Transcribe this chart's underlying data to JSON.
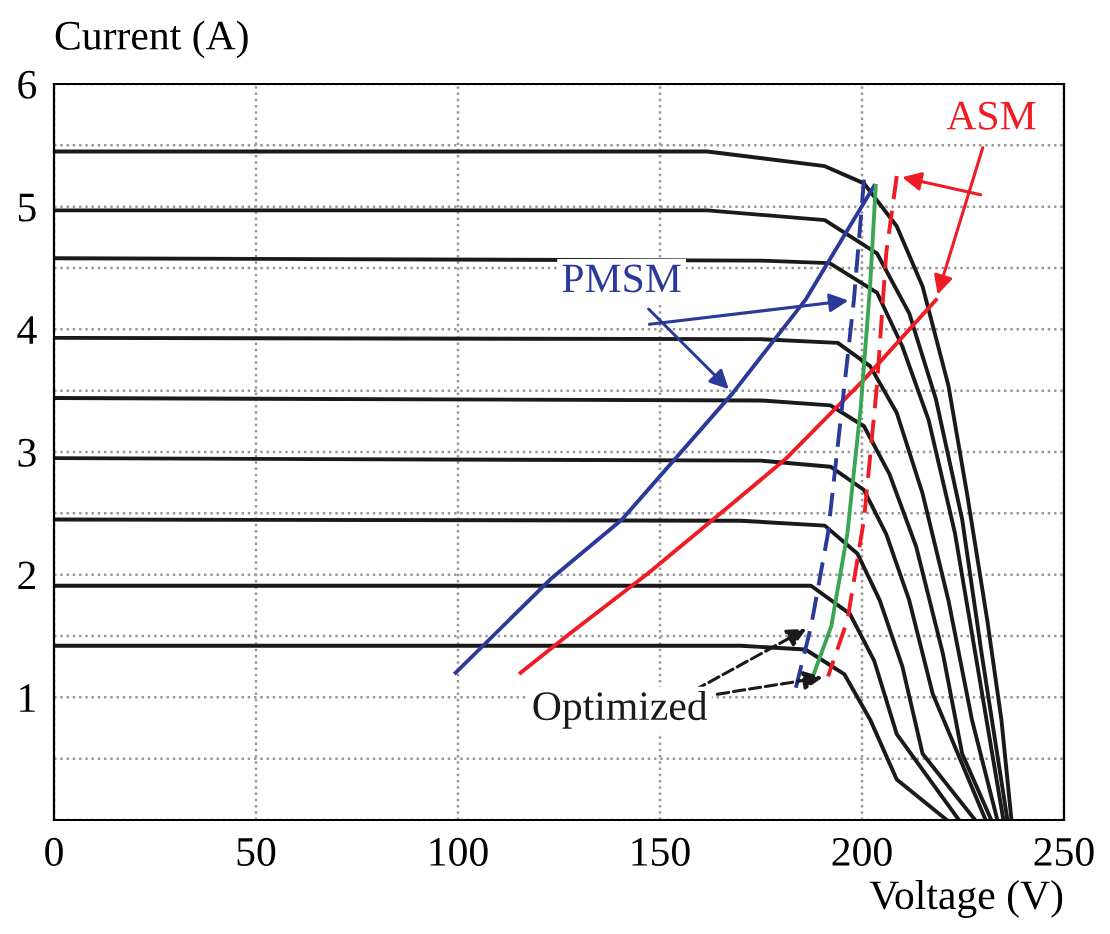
{
  "chart_data": {
    "type": "line",
    "xlabel": "Voltage (V)",
    "ylabel": "Current (A)",
    "xlim": [
      0,
      250
    ],
    "xticks": [
      0,
      50,
      100,
      150,
      200,
      250
    ],
    "ylim": [
      0,
      6
    ],
    "yticks": [
      {
        "value": 0,
        "label": null
      },
      {
        "value": 0.5,
        "label": null
      },
      1,
      {
        "value": 1.5,
        "label": null
      },
      2,
      {
        "value": 2.5,
        "label": null
      },
      3,
      {
        "value": 3.5,
        "label": null
      },
      4,
      {
        "value": 4.5,
        "label": null
      },
      5,
      {
        "value": 5.5,
        "label": null
      },
      6
    ],
    "grid": true,
    "marker": "none",
    "series": [
      {
        "color": "#1a1a1a",
        "line_style": "solid",
        "x": [
          0,
          161.7,
          190.8,
          200.5,
          208.6,
          215,
          221.4,
          226,
          231,
          234.5,
          237
        ],
        "values": [
          5.45,
          5.45,
          5.33,
          5.19,
          4.84,
          4.35,
          3.54,
          2.66,
          1.63,
          0.82,
          0
        ]
      },
      {
        "color": "#1a1a1a",
        "line_style": "solid",
        "x": [
          0,
          161.7,
          190.8,
          203.7,
          211.7,
          218.3,
          224.8,
          229.6,
          236
        ],
        "values": [
          4.97,
          4.97,
          4.89,
          4.62,
          4.13,
          3.43,
          2.45,
          1.36,
          0
        ]
      },
      {
        "color": "#1a1a1a",
        "line_style": "solid",
        "x": [
          0,
          175,
          192,
          203.7,
          210,
          216.5,
          223,
          228.6,
          235
        ],
        "values": [
          4.58,
          4.56,
          4.54,
          4.3,
          3.86,
          3.26,
          2.34,
          1.25,
          0
        ]
      },
      {
        "color": "#1a1a1a",
        "line_style": "solid",
        "x": [
          0,
          175,
          194,
          202,
          208.6,
          215,
          221.4,
          227.2,
          233.5
        ],
        "values": [
          3.93,
          3.92,
          3.89,
          3.7,
          3.32,
          2.66,
          1.79,
          0.82,
          0
        ]
      },
      {
        "color": "#1a1a1a",
        "line_style": "solid",
        "x": [
          0,
          175,
          192.2,
          200.5,
          206.8,
          213.4,
          220,
          224.8,
          232
        ],
        "values": [
          3.44,
          3.42,
          3.38,
          3.21,
          2.82,
          2.23,
          1.36,
          0.54,
          0
        ]
      },
      {
        "color": "#1a1a1a",
        "line_style": "solid",
        "x": [
          0,
          175,
          192.2,
          200.5,
          206,
          211.7,
          217.5,
          230.6
        ],
        "values": [
          2.95,
          2.93,
          2.88,
          2.69,
          2.33,
          1.79,
          1.03,
          0
        ]
      },
      {
        "color": "#1a1a1a",
        "line_style": "solid",
        "x": [
          0,
          170,
          190.8,
          198.9,
          204.4,
          210,
          215,
          228
        ],
        "values": [
          2.45,
          2.44,
          2.4,
          2.17,
          1.79,
          1.25,
          0.54,
          0
        ]
      },
      {
        "color": "#1a1a1a",
        "line_style": "solid",
        "x": [
          0,
          170,
          187.4,
          197,
          203,
          208.6,
          224
        ],
        "values": [
          1.91,
          1.91,
          1.91,
          1.68,
          1.3,
          0.7,
          0
        ]
      },
      {
        "color": "#1a1a1a",
        "line_style": "solid",
        "x": [
          0,
          170,
          186,
          195.6,
          202,
          208.6,
          221
        ],
        "values": [
          1.42,
          1.42,
          1.39,
          1.19,
          0.82,
          0.33,
          0
        ]
      },
      {
        "color": "#2b3a98",
        "line_style": "solid",
        "x": [
          99.4,
          122.8,
          140.6,
          168,
          186,
          203
        ],
        "values": [
          1.2,
          1.96,
          2.45,
          3.48,
          4.24,
          5.17
        ]
      },
      {
        "color": "#ee1c25",
        "line_style": "solid",
        "x": [
          115.5,
          127.7,
          147,
          165,
          181,
          200.5,
          218.3
        ],
        "values": [
          1.2,
          1.52,
          2.01,
          2.5,
          2.94,
          3.59,
          4.24
        ]
      },
      {
        "color": "#2b3a98",
        "line_style": "dashed",
        "x": [
          200.5,
          198,
          194.7,
          191.6,
          187.4,
          183.5
        ],
        "values": [
          5.22,
          4.24,
          3.26,
          2.34,
          1.58,
          1.06
        ]
      },
      {
        "color": "#ee1c25",
        "line_style": "dashed",
        "x": [
          208.6,
          206,
          203.7,
          200.5,
          196.4,
          191.6
        ],
        "values": [
          5.25,
          4.62,
          3.54,
          2.45,
          1.63,
          1.17
        ]
      },
      {
        "color": "#3aa655",
        "line_style": "solid",
        "x": [
          203.4,
          202,
          199.7,
          196.4,
          192.4,
          187.5
        ],
        "values": [
          5.17,
          4.35,
          3.37,
          2.34,
          1.58,
          1.14
        ]
      }
    ],
    "annotations": [
      {
        "text": "PMSM",
        "x": 168,
        "y": 3.48
      },
      {
        "text": "ASM",
        "x": 218.3,
        "y": 4.24
      },
      {
        "text": "Optimized",
        "x": 191.6,
        "y": 1.17
      }
    ]
  }
}
